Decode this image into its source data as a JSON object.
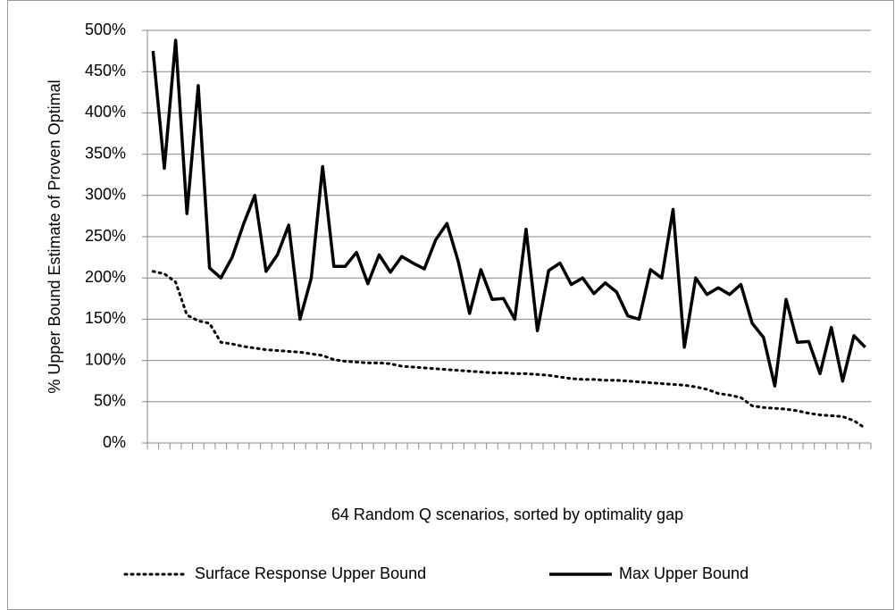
{
  "chart_data": {
    "type": "line",
    "xlabel": "64 Random Q scenarios, sorted by optimality gap",
    "ylabel": "% Upper Bound Estimate of Proven Optimal",
    "categories": [
      null,
      null,
      null,
      null,
      null,
      null,
      null,
      null,
      null,
      null,
      null,
      null,
      null,
      null,
      null,
      null,
      null,
      null,
      null,
      null,
      null,
      null,
      null,
      null,
      null,
      null,
      null,
      null,
      null,
      null,
      null,
      null,
      null,
      null,
      null,
      null,
      null,
      null,
      null,
      null,
      null,
      null,
      null,
      null,
      null,
      null,
      null,
      null,
      null,
      null,
      null,
      null,
      null,
      null,
      null,
      null,
      null,
      null,
      null,
      null,
      null,
      null,
      null,
      null
    ],
    "series": [
      {
        "name": "Surface Response Upper Bound",
        "color": "#000000",
        "style": "dotted",
        "values": [
          208,
          205,
          195,
          155,
          148,
          145,
          122,
          120,
          117,
          115,
          113,
          112,
          111,
          110,
          108,
          106,
          101,
          99,
          98,
          97,
          97,
          96,
          93,
          92,
          91,
          90,
          89,
          88,
          87,
          86,
          85,
          85,
          84,
          84,
          83,
          82,
          80,
          78,
          77,
          77,
          76,
          76,
          75,
          74,
          73,
          72,
          71,
          70,
          68,
          65,
          60,
          58,
          55,
          45,
          43,
          42,
          41,
          39,
          36,
          34,
          33,
          32,
          27,
          18
        ]
      },
      {
        "name": "Max Upper Bound",
        "color": "#000000",
        "style": "solid",
        "values": [
          475,
          333,
          488,
          278,
          433,
          212,
          200,
          225,
          265,
          300,
          208,
          228,
          264,
          150,
          200,
          335,
          214,
          214,
          231,
          193,
          228,
          207,
          226,
          218,
          211,
          246,
          266,
          220,
          157,
          210,
          174,
          175,
          150,
          259,
          136,
          209,
          218,
          192,
          200,
          181,
          194,
          183,
          154,
          150,
          210,
          200,
          283,
          116,
          200,
          180,
          188,
          180,
          192,
          145,
          128,
          69,
          174,
          122,
          123,
          84,
          140,
          75,
          130,
          116
        ]
      }
    ],
    "ylim": [
      0,
      500
    ],
    "yticks": [
      {
        "value": 0,
        "label": "0%"
      },
      {
        "value": 50,
        "label": "50%"
      },
      {
        "value": 100,
        "label": "100%"
      },
      {
        "value": 150,
        "label": "150%"
      },
      {
        "value": 200,
        "label": "200%"
      },
      {
        "value": 250,
        "label": "250%"
      },
      {
        "value": 300,
        "label": "300%"
      },
      {
        "value": 350,
        "label": "350%"
      },
      {
        "value": 400,
        "label": "400%"
      },
      {
        "value": 450,
        "label": "450%"
      },
      {
        "value": 500,
        "label": "500%"
      }
    ],
    "grid": true,
    "legend": "bottom"
  }
}
